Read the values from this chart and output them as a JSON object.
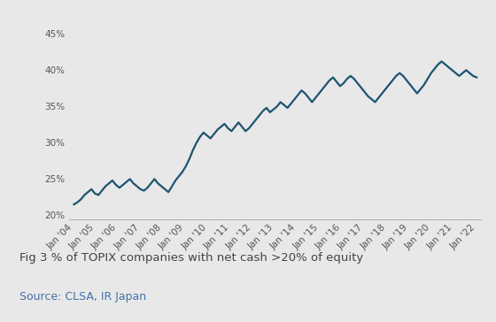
{
  "title": "Fig 3 % of TOPIX companies with net cash >20% of equity",
  "source": "Source: CLSA, IR Japan",
  "line_color": "#1d5470",
  "background_color": "#e8e8e8",
  "plot_background_color": "#e8e8e8",
  "ylim": [
    0.195,
    0.47
  ],
  "yticks": [
    0.2,
    0.25,
    0.3,
    0.35,
    0.4,
    0.45
  ],
  "x_labels": [
    "Jan '04",
    "Jan '05",
    "Jan '06",
    "Jan '07",
    "Jan '08",
    "Jan '09",
    "Jan '10",
    "Jan '11",
    "Jan '12",
    "Jan '13",
    "Jan '14",
    "Jan '15",
    "Jan '16",
    "Jan '17",
    "Jan '18",
    "Jan '19",
    "Jan '20",
    "Jan '21",
    "Jan '22"
  ],
  "data_y": [
    0.215,
    0.218,
    0.222,
    0.228,
    0.232,
    0.236,
    0.23,
    0.228,
    0.234,
    0.24,
    0.244,
    0.248,
    0.242,
    0.238,
    0.242,
    0.246,
    0.25,
    0.244,
    0.24,
    0.236,
    0.234,
    0.238,
    0.244,
    0.25,
    0.244,
    0.24,
    0.236,
    0.232,
    0.24,
    0.248,
    0.254,
    0.26,
    0.268,
    0.278,
    0.29,
    0.3,
    0.308,
    0.314,
    0.31,
    0.306,
    0.312,
    0.318,
    0.322,
    0.326,
    0.32,
    0.316,
    0.322,
    0.328,
    0.322,
    0.316,
    0.32,
    0.326,
    0.332,
    0.338,
    0.344,
    0.348,
    0.342,
    0.346,
    0.35,
    0.356,
    0.352,
    0.348,
    0.354,
    0.36,
    0.366,
    0.372,
    0.368,
    0.362,
    0.356,
    0.362,
    0.368,
    0.374,
    0.38,
    0.386,
    0.39,
    0.384,
    0.378,
    0.382,
    0.388,
    0.392,
    0.388,
    0.382,
    0.376,
    0.37,
    0.364,
    0.36,
    0.356,
    0.362,
    0.368,
    0.374,
    0.38,
    0.386,
    0.392,
    0.396,
    0.392,
    0.386,
    0.38,
    0.374,
    0.368,
    0.374,
    0.38,
    0.388,
    0.396,
    0.402,
    0.408,
    0.412,
    0.408,
    0.404,
    0.4,
    0.396,
    0.392,
    0.396,
    0.4,
    0.396,
    0.392,
    0.39
  ],
  "line_width": 1.6,
  "title_fontsize": 9.5,
  "source_fontsize": 9,
  "tick_fontsize": 7.5,
  "title_color": "#444444",
  "source_color": "#4472aa"
}
